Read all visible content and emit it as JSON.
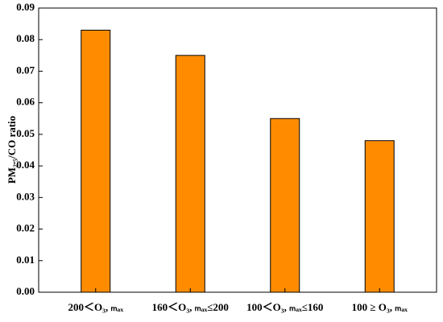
{
  "chart_data": {
    "type": "bar",
    "y_label": "PM₂.₅/CO ratio",
    "categories": [
      "200＜O₃, ₘₐₓ",
      "160＜O₃, ₘₐₓ≤200",
      "100＜O₃, ₘₐₓ≤160",
      "100 ≥ O₃, ₘₐₓ"
    ],
    "values": [
      0.083,
      0.075,
      0.055,
      0.048
    ],
    "color": "#ff8c00",
    "ylim": [
      0,
      0.09
    ],
    "yticks": [
      {
        "value": 0,
        "label": "0.00"
      },
      {
        "value": 0.01,
        "label": "0.01"
      },
      {
        "value": 0.02,
        "label": "0.02"
      },
      {
        "value": 0.03,
        "label": "0.03"
      },
      {
        "value": 0.04,
        "label": "0.04"
      },
      {
        "value": 0.05,
        "label": "0.05"
      },
      {
        "value": 0.06,
        "label": "0.06"
      },
      {
        "value": 0.07,
        "label": "0.07"
      },
      {
        "value": 0.08,
        "label": "0.08"
      },
      {
        "value": 0.09,
        "label": "0.09"
      }
    ],
    "grid": false
  }
}
